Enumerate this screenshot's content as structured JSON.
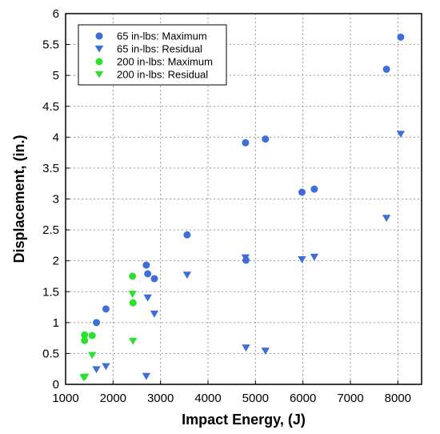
{
  "chart_data": {
    "type": "scatter",
    "xlabel": "Impact Energy, (J)",
    "ylabel": "Displacement, (in.)",
    "xlim": [
      1000,
      8500
    ],
    "ylim": [
      0,
      6
    ],
    "xticks": [
      1000,
      2000,
      3000,
      4000,
      5000,
      6000,
      7000,
      8000
    ],
    "yticks": [
      0,
      0.5,
      1,
      1.5,
      2,
      2.5,
      3,
      3.5,
      4,
      4.5,
      5,
      5.5,
      6
    ],
    "x_tick_labels": [
      "1000",
      "2000",
      "3000",
      "4000",
      "5000",
      "6000",
      "7000",
      "8000"
    ],
    "y_tick_labels": [
      "0",
      "0.5",
      "1",
      "1.5",
      "2",
      "2.5",
      "3",
      "3.5",
      "4",
      "4.5",
      "5",
      "5.5",
      "6"
    ],
    "grid": true,
    "legend_position": "top-left",
    "series": [
      {
        "name": "65 in-lbs: Maximum",
        "marker": "circle",
        "color": "#3D6FD6",
        "points": [
          [
            1650,
            1.0
          ],
          [
            1850,
            1.22
          ],
          [
            2700,
            1.93
          ],
          [
            2730,
            1.79
          ],
          [
            2870,
            1.71
          ],
          [
            3560,
            2.42
          ],
          [
            4790,
            3.91
          ],
          [
            4800,
            2.01
          ],
          [
            5210,
            3.97
          ],
          [
            5980,
            3.11
          ],
          [
            6240,
            3.16
          ],
          [
            7760,
            5.1
          ],
          [
            8060,
            5.62
          ]
        ]
      },
      {
        "name": "65 in-lbs: Residual",
        "marker": "triangle-down",
        "color": "#3D6FD6",
        "points": [
          [
            1650,
            0.24
          ],
          [
            1850,
            0.29
          ],
          [
            2700,
            0.13
          ],
          [
            2730,
            1.4
          ],
          [
            2870,
            1.14
          ],
          [
            3560,
            1.77
          ],
          [
            4790,
            2.05
          ],
          [
            4800,
            0.59
          ],
          [
            5210,
            0.54
          ],
          [
            5980,
            2.02
          ],
          [
            6240,
            2.06
          ],
          [
            7760,
            2.69
          ],
          [
            8060,
            4.05
          ]
        ]
      },
      {
        "name": "200 in-lbs: Maximum",
        "marker": "circle",
        "color": "#2EE02E",
        "points": [
          [
            1400,
            0.8
          ],
          [
            1400,
            0.71
          ],
          [
            1560,
            0.79
          ],
          [
            2410,
            1.75
          ],
          [
            2420,
            1.32
          ]
        ]
      },
      {
        "name": "200 in-lbs: Residual",
        "marker": "triangle-down",
        "color": "#2EE02E",
        "points": [
          [
            1380,
            0.11
          ],
          [
            1410,
            0.12
          ],
          [
            1560,
            0.47
          ],
          [
            2410,
            1.46
          ],
          [
            2420,
            0.7
          ]
        ]
      }
    ]
  }
}
